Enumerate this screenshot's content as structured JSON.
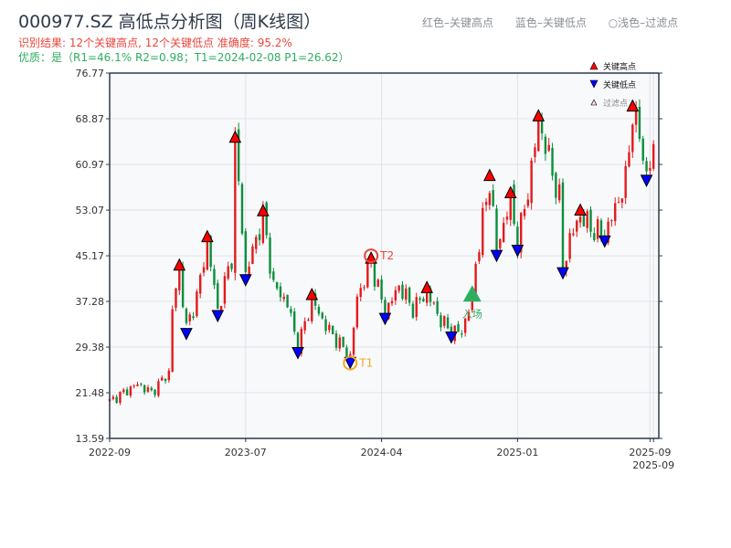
{
  "header": {
    "title": "000977.SZ 高低点分析图（周K线图）",
    "result_line": "识别结果: 12个关键高点, 12个关键低点   准确度: 95.2%",
    "quality_line": "优质：是（R1=46.1%  R2=0.98；T1=2024-02-08 P1=26.62）",
    "legend_red": "红色–关键高点",
    "legend_blue": "蓝色–关键低点",
    "legend_light": "○浅色–过滤点"
  },
  "chart_data": {
    "type": "candlestick",
    "title": "000977.SZ 高低点分析图（周K线图）",
    "ylim": [
      13.59,
      76.77
    ],
    "yticks": [
      "76.77",
      "68.87",
      "60.97",
      "53.07",
      "45.17",
      "37.28",
      "29.38",
      "21.48",
      "13.59"
    ],
    "xlim_weeks": [
      0,
      157
    ],
    "xticks": [
      {
        "week": 0,
        "label": "2022-09"
      },
      {
        "week": 39,
        "label": "2023-07"
      },
      {
        "week": 78,
        "label": "2024-04"
      },
      {
        "week": 117,
        "label": "2025-01"
      },
      {
        "week": 155,
        "label": "2025-09"
      },
      {
        "week": 156,
        "label": "2025-09"
      }
    ],
    "price_path": [
      [
        0,
        20
      ],
      [
        8,
        23
      ],
      [
        12,
        21.5
      ],
      [
        17,
        25
      ],
      [
        18,
        36
      ],
      [
        20,
        42.7
      ],
      [
        22,
        32.6
      ],
      [
        25,
        38
      ],
      [
        28,
        47.6
      ],
      [
        31,
        35.7
      ],
      [
        35,
        45
      ],
      [
        36,
        64.8
      ],
      [
        38,
        50
      ],
      [
        39,
        41.9
      ],
      [
        44,
        52.1
      ],
      [
        47,
        40
      ],
      [
        51,
        37
      ],
      [
        54,
        29.3
      ],
      [
        58,
        37.6
      ],
      [
        62,
        33
      ],
      [
        69,
        27.6
      ],
      [
        71,
        38
      ],
      [
        75,
        43.9
      ],
      [
        79,
        35.2
      ],
      [
        83,
        40
      ],
      [
        87,
        36
      ],
      [
        91,
        38.8
      ],
      [
        95,
        34
      ],
      [
        98,
        32
      ],
      [
        101,
        32
      ],
      [
        104,
        38
      ],
      [
        105,
        44
      ],
      [
        109,
        58.2
      ],
      [
        111,
        46.1
      ],
      [
        115,
        55.2
      ],
      [
        117,
        47
      ],
      [
        121,
        60
      ],
      [
        123,
        68.5
      ],
      [
        126,
        62
      ],
      [
        129,
        55
      ],
      [
        130,
        43.1
      ],
      [
        132,
        48
      ],
      [
        135,
        52.2
      ],
      [
        138,
        50
      ],
      [
        142,
        48.6
      ],
      [
        146,
        55
      ],
      [
        148,
        58
      ],
      [
        150,
        70.2
      ],
      [
        152,
        66
      ],
      [
        154,
        59.1
      ],
      [
        156,
        63
      ]
    ],
    "key_highs": [
      {
        "week": 20,
        "price": 42.7
      },
      {
        "week": 28,
        "price": 47.6
      },
      {
        "week": 36,
        "price": 64.8
      },
      {
        "week": 44,
        "price": 52.1
      },
      {
        "week": 58,
        "price": 37.6
      },
      {
        "week": 75,
        "price": 43.9
      },
      {
        "week": 91,
        "price": 38.8
      },
      {
        "week": 109,
        "price": 58.2
      },
      {
        "week": 115,
        "price": 55.2
      },
      {
        "week": 123,
        "price": 68.5
      },
      {
        "week": 135,
        "price": 52.2
      },
      {
        "week": 150,
        "price": 70.2
      }
    ],
    "key_lows": [
      {
        "week": 22,
        "price": 32.6
      },
      {
        "week": 31,
        "price": 35.7
      },
      {
        "week": 39,
        "price": 41.9
      },
      {
        "week": 54,
        "price": 29.3
      },
      {
        "week": 69,
        "price": 27.6
      },
      {
        "week": 79,
        "price": 35.2
      },
      {
        "week": 98,
        "price": 32
      },
      {
        "week": 111,
        "price": 46.1
      },
      {
        "week": 117,
        "price": 47
      },
      {
        "week": 130,
        "price": 43.1
      },
      {
        "week": 142,
        "price": 48.6
      },
      {
        "week": 154,
        "price": 59.1
      }
    ],
    "t1": {
      "week": 69,
      "price": 26.62,
      "label": "T1"
    },
    "t2": {
      "week": 75,
      "price": 45.17,
      "label": "T2"
    },
    "entry": {
      "week": 104,
      "price": 38.5,
      "label": "入场"
    },
    "legend": [
      "关键高点",
      "关键低点",
      "过滤点"
    ],
    "legend_position": "top-right",
    "colors": {
      "up": "#e41a1c",
      "down": "#0a8f3c",
      "high": "#ff0000",
      "low": "#0000ff",
      "t1": "#f5a623",
      "t2": "#e8453c",
      "entry": "#2fae60"
    }
  }
}
